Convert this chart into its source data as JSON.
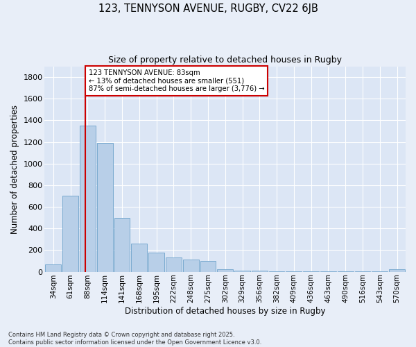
{
  "title1": "123, TENNYSON AVENUE, RUGBY, CV22 6JB",
  "title2": "Size of property relative to detached houses in Rugby",
  "xlabel": "Distribution of detached houses by size in Rugby",
  "ylabel": "Number of detached properties",
  "bar_labels": [
    "34sqm",
    "61sqm",
    "88sqm",
    "114sqm",
    "141sqm",
    "168sqm",
    "195sqm",
    "222sqm",
    "248sqm",
    "275sqm",
    "302sqm",
    "329sqm",
    "356sqm",
    "382sqm",
    "409sqm",
    "436sqm",
    "463sqm",
    "490sqm",
    "516sqm",
    "543sqm",
    "570sqm"
  ],
  "bar_values": [
    70,
    700,
    1350,
    1190,
    500,
    260,
    175,
    130,
    110,
    100,
    25,
    12,
    8,
    5,
    5,
    5,
    5,
    5,
    5,
    5,
    25
  ],
  "bar_color": "#b8cfe8",
  "bar_edge_color": "#7aaad0",
  "background_color": "#dce6f5",
  "grid_color": "#ffffff",
  "vline_color": "#cc0000",
  "annotation_text_line1": "123 TENNYSON AVENUE: 83sqm",
  "annotation_text_line2": "← 13% of detached houses are smaller (551)",
  "annotation_text_line3": "87% of semi-detached houses are larger (3,776) →",
  "annotation_box_color": "#cc0000",
  "ylim": [
    0,
    1900
  ],
  "yticks": [
    0,
    200,
    400,
    600,
    800,
    1000,
    1200,
    1400,
    1600,
    1800
  ],
  "footer1": "Contains HM Land Registry data © Crown copyright and database right 2025.",
  "footer2": "Contains public sector information licensed under the Open Government Licence v3.0.",
  "fig_width": 6.0,
  "fig_height": 5.0,
  "dpi": 100
}
